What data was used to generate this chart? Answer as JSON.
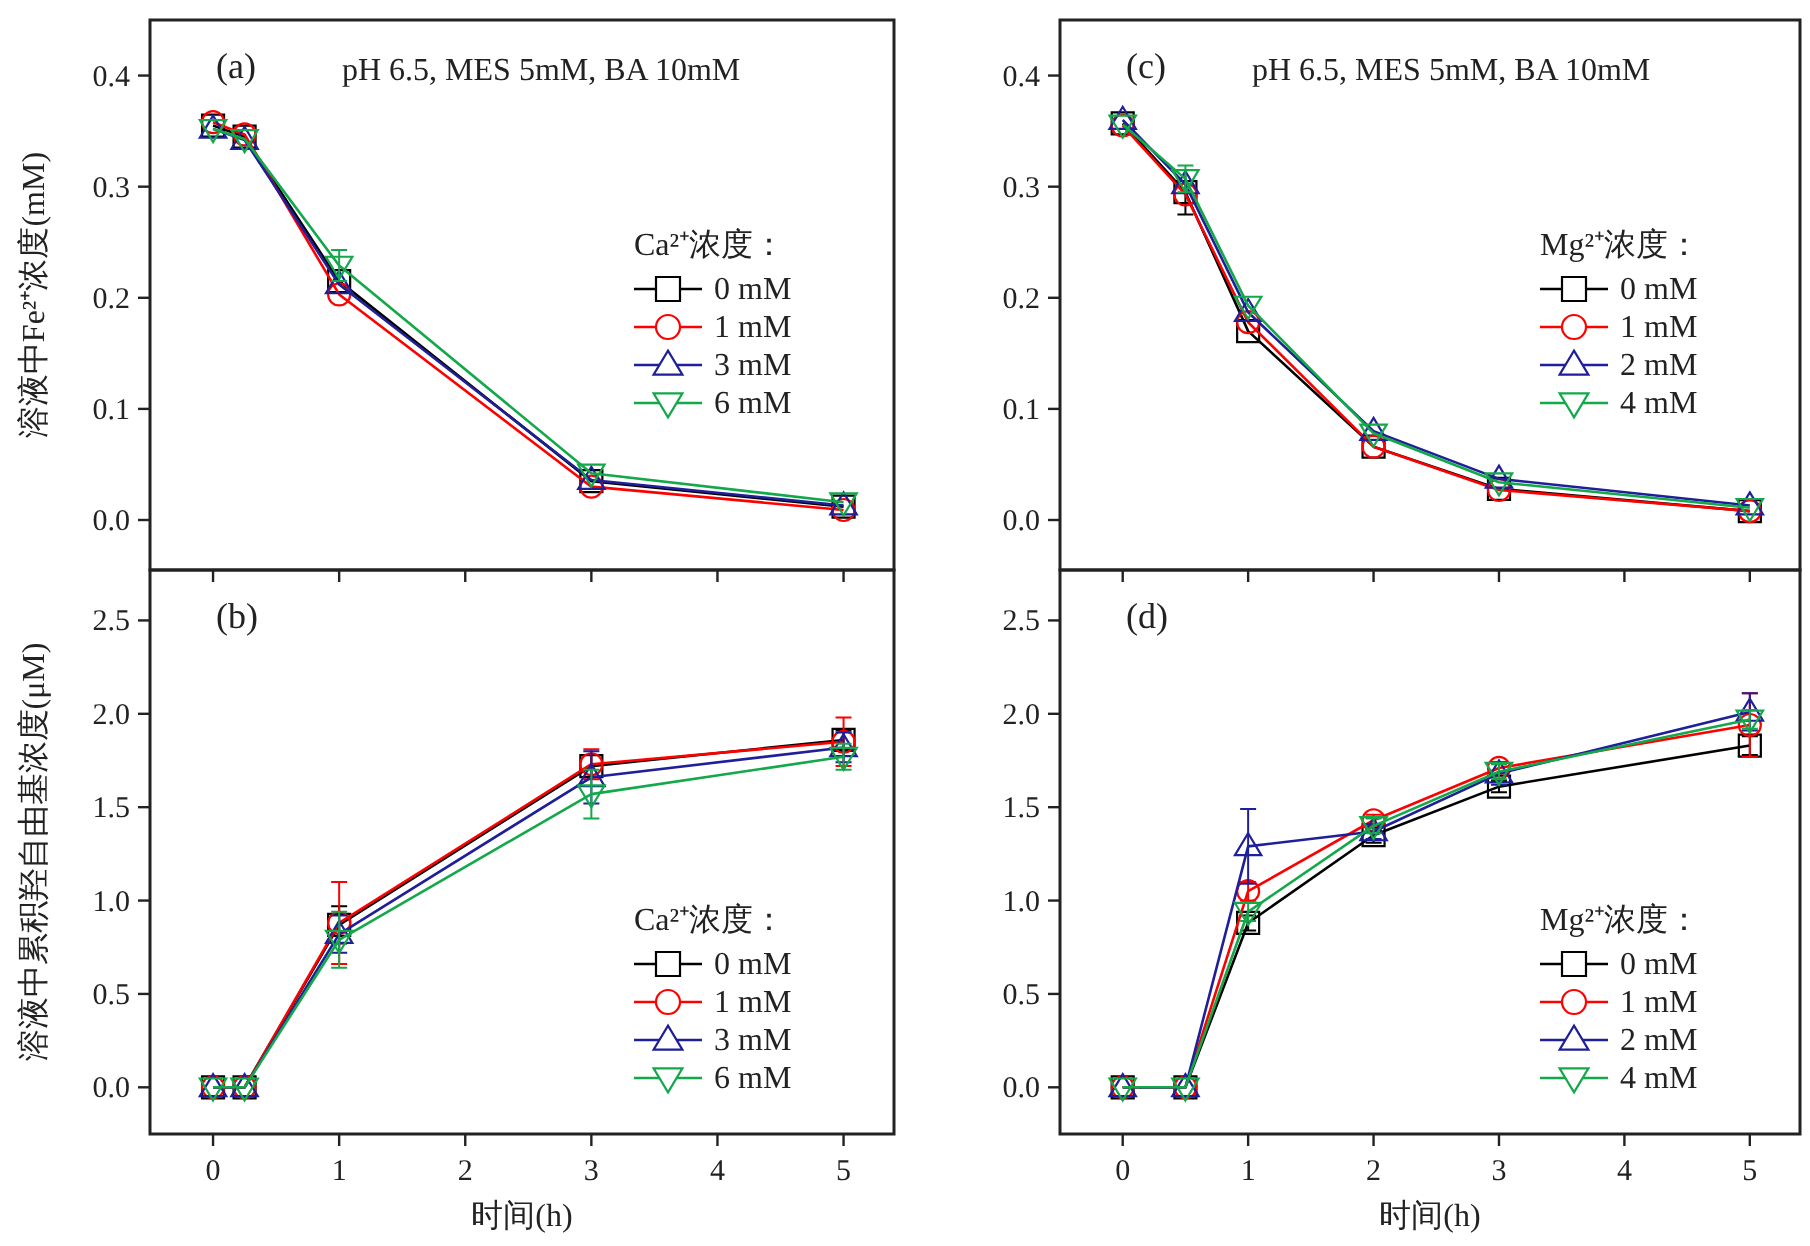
{
  "chart_data": [
    {
      "type": "line",
      "annotations": [
        "(a)",
        "pH 6.5, MES 5mM, BA 10mM"
      ],
      "ylabel": "溶液中Fe²⁺浓度(mM)",
      "legend_title": "Ca²⁺浓度：",
      "legend": "right",
      "tick_labels": "y",
      "line_style": "solid",
      "xlim": [
        -0.5,
        5.4
      ],
      "xticks": [
        {
          "value": 0,
          "label": null
        },
        {
          "value": 1,
          "label": null
        },
        {
          "value": 2,
          "label": null
        },
        {
          "value": 3,
          "label": null
        },
        {
          "value": 4,
          "label": null
        },
        {
          "value": 5,
          "label": null
        }
      ],
      "ylim": [
        -0.045,
        0.45
      ],
      "yticks": [
        {
          "value": 0,
          "label": "0.0"
        },
        {
          "value": 0.1,
          "label": "0.1"
        },
        {
          "value": 0.2,
          "label": "0.2"
        },
        {
          "value": 0.3,
          "label": "0.3"
        },
        {
          "value": 0.4,
          "label": "0.4"
        }
      ],
      "x": [
        0,
        0.25,
        1,
        3,
        5
      ],
      "series": [
        {
          "name": "0 mM",
          "color": "#000000",
          "marker": "square",
          "values": [
            0.355,
            0.345,
            0.215,
            0.035,
            0.012
          ]
        },
        {
          "name": "1 mM",
          "color": "#ff0000",
          "marker": "circle",
          "values": [
            0.358,
            0.347,
            0.203,
            0.03,
            0.009
          ]
        },
        {
          "name": "3 mM",
          "color": "#1f1f99",
          "marker": "triangle",
          "values": [
            0.352,
            0.342,
            0.212,
            0.036,
            0.013
          ]
        },
        {
          "name": "6 mM",
          "color": "#13a84a",
          "marker": "triangle-down",
          "values": [
            0.352,
            0.343,
            0.229,
            0.042,
            0.016
          ],
          "errors": [
            null,
            null,
            0.014,
            null,
            null
          ]
        }
      ]
    },
    {
      "type": "line",
      "annotations": [
        "(b)"
      ],
      "ylabel": "溶液中累积羟自由基浓度(μM)",
      "xlabel": "时间(h)",
      "legend_title": "Ca²⁺浓度：",
      "legend": "bottom right",
      "line_style": "solid",
      "xlim": [
        -0.5,
        5.4
      ],
      "xticks": [
        0,
        1,
        2,
        3,
        4,
        5
      ],
      "ylim": [
        -0.25,
        2.77
      ],
      "yticks": [
        {
          "value": 0,
          "label": "0.0"
        },
        {
          "value": 0.5,
          "label": "0.5"
        },
        {
          "value": 1,
          "label": "1.0"
        },
        {
          "value": 1.5,
          "label": "1.5"
        },
        {
          "value": 2,
          "label": "2.0"
        },
        {
          "value": 2.5,
          "label": "2.5"
        }
      ],
      "x": [
        0,
        0.25,
        1,
        3,
        5
      ],
      "series": [
        {
          "name": "0 mM",
          "color": "#000000",
          "marker": "square",
          "values": [
            0,
            0,
            0.87,
            1.72,
            1.86
          ],
          "errors": [
            null,
            null,
            0.1,
            0.06,
            0.05
          ]
        },
        {
          "name": "1 mM",
          "color": "#ff0000",
          "marker": "circle",
          "values": [
            0,
            0,
            0.88,
            1.73,
            1.85
          ],
          "errors": [
            null,
            null,
            0.22,
            0.08,
            0.13
          ]
        },
        {
          "name": "3 mM",
          "color": "#1f1f99",
          "marker": "triangle",
          "values": [
            0,
            0,
            0.82,
            1.66,
            1.82
          ],
          "errors": [
            null,
            null,
            0.1,
            0.14,
            0.08
          ]
        },
        {
          "name": "6 mM",
          "color": "#13a84a",
          "marker": "triangle-down",
          "values": [
            0,
            0,
            0.79,
            1.57,
            1.77
          ],
          "errors": [
            null,
            null,
            0.15,
            0.13,
            0.07
          ]
        }
      ]
    },
    {
      "type": "line",
      "annotations": [
        "(c)",
        "pH 6.5, MES 5mM, BA 10mM"
      ],
      "legend_title": "Mg²⁺浓度：",
      "legend": "right",
      "tick_labels": "y",
      "line_style": "solid",
      "xlim": [
        -0.5,
        5.4
      ],
      "xticks": [
        {
          "value": 0,
          "label": null
        },
        {
          "value": 1,
          "label": null
        },
        {
          "value": 2,
          "label": null
        },
        {
          "value": 3,
          "label": null
        },
        {
          "value": 4,
          "label": null
        },
        {
          "value": 5,
          "label": null
        }
      ],
      "ylim": [
        -0.045,
        0.45
      ],
      "yticks": [
        {
          "value": 0,
          "label": "0.0"
        },
        {
          "value": 0.1,
          "label": "0.1"
        },
        {
          "value": 0.2,
          "label": "0.2"
        },
        {
          "value": 0.3,
          "label": "0.3"
        },
        {
          "value": 0.4,
          "label": "0.4"
        }
      ],
      "x": [
        0,
        0.5,
        1,
        2,
        3,
        5
      ],
      "series": [
        {
          "name": "0 mM",
          "color": "#000000",
          "marker": "square",
          "values": [
            0.357,
            0.295,
            0.17,
            0.066,
            0.028,
            0.008
          ],
          "errors": [
            null,
            0.02,
            null,
            null,
            null,
            null
          ]
        },
        {
          "name": "1 mM",
          "color": "#ff0000",
          "marker": "circle",
          "values": [
            0.355,
            0.293,
            0.178,
            0.066,
            0.027,
            0.008
          ]
        },
        {
          "name": "2 mM",
          "color": "#1f1f99",
          "marker": "triangle",
          "values": [
            0.36,
            0.302,
            0.187,
            0.08,
            0.037,
            0.013
          ]
        },
        {
          "name": "4 mM",
          "color": "#13a84a",
          "marker": "triangle-down",
          "values": [
            0.356,
            0.307,
            0.193,
            0.078,
            0.034,
            0.011
          ],
          "errors": [
            null,
            0.012,
            null,
            null,
            null,
            null
          ]
        }
      ]
    },
    {
      "type": "line",
      "annotations": [
        "(d)"
      ],
      "xlabel": "时间(h)",
      "legend_title": "Mg²⁺浓度：",
      "legend": "bottom right",
      "line_style": "solid",
      "xlim": [
        -0.5,
        5.4
      ],
      "xticks": [
        0,
        1,
        2,
        3,
        4,
        5
      ],
      "ylim": [
        -0.25,
        2.77
      ],
      "yticks": [
        {
          "value": 0,
          "label": "0.0"
        },
        {
          "value": 0.5,
          "label": "0.5"
        },
        {
          "value": 1,
          "label": "1.0"
        },
        {
          "value": 1.5,
          "label": "1.5"
        },
        {
          "value": 2,
          "label": "2.0"
        },
        {
          "value": 2.5,
          "label": "2.5"
        }
      ],
      "x": [
        0,
        0.5,
        1,
        2,
        3,
        5
      ],
      "series": [
        {
          "name": "0 mM",
          "color": "#000000",
          "marker": "square",
          "values": [
            0,
            0,
            0.88,
            1.35,
            1.61,
            1.83
          ],
          "errors": [
            null,
            null,
            0.04,
            0.04,
            0.03,
            0.05
          ]
        },
        {
          "name": "1 mM",
          "color": "#ff0000",
          "marker": "circle",
          "values": [
            0,
            0,
            1.05,
            1.43,
            1.71,
            1.94
          ],
          "errors": [
            null,
            null,
            0.05,
            0.03,
            0.03,
            0.17
          ]
        },
        {
          "name": "2 mM",
          "color": "#1f1f99",
          "marker": "triangle",
          "values": [
            0,
            0,
            1.29,
            1.37,
            1.68,
            2.01
          ],
          "errors": [
            null,
            null,
            0.2,
            0.04,
            0.06,
            0.1
          ]
        },
        {
          "name": "4 mM",
          "color": "#13a84a",
          "marker": "triangle-down",
          "values": [
            0,
            0,
            0.94,
            1.4,
            1.69,
            1.97
          ],
          "errors": [
            null,
            null,
            0.05,
            0.04,
            0.04,
            0.05
          ]
        }
      ]
    }
  ]
}
